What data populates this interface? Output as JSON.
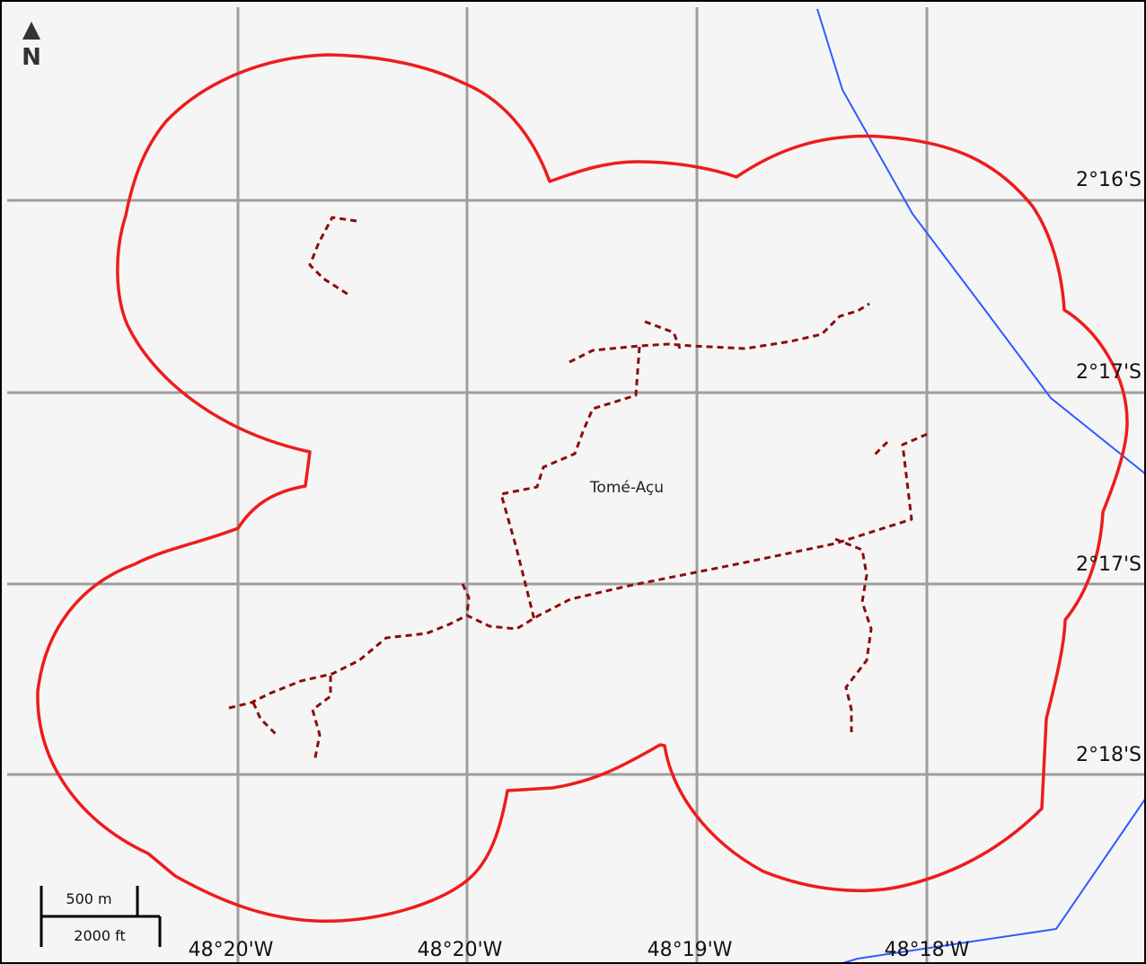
{
  "map": {
    "north_arrow": {
      "letter": "N",
      "icon": "north-arrow-icon"
    },
    "place_label": "Tomé-Açu",
    "latitude_labels": [
      "2°16'S",
      "2°17'S",
      "2°17'S",
      "2°18'S"
    ],
    "longitude_labels": [
      "48°20'W",
      "48°20'W",
      "48°19'W",
      "48°18'W"
    ],
    "scale_bar": {
      "metric": "500 m",
      "imperial": "2000 ft"
    },
    "colors": {
      "background": "#f5f5f5",
      "grid": "#9e9e9e",
      "boundary": "#ee1c1c",
      "track": "#8b0d0d",
      "river": "#2f5bff",
      "frame": "#000000"
    }
  }
}
